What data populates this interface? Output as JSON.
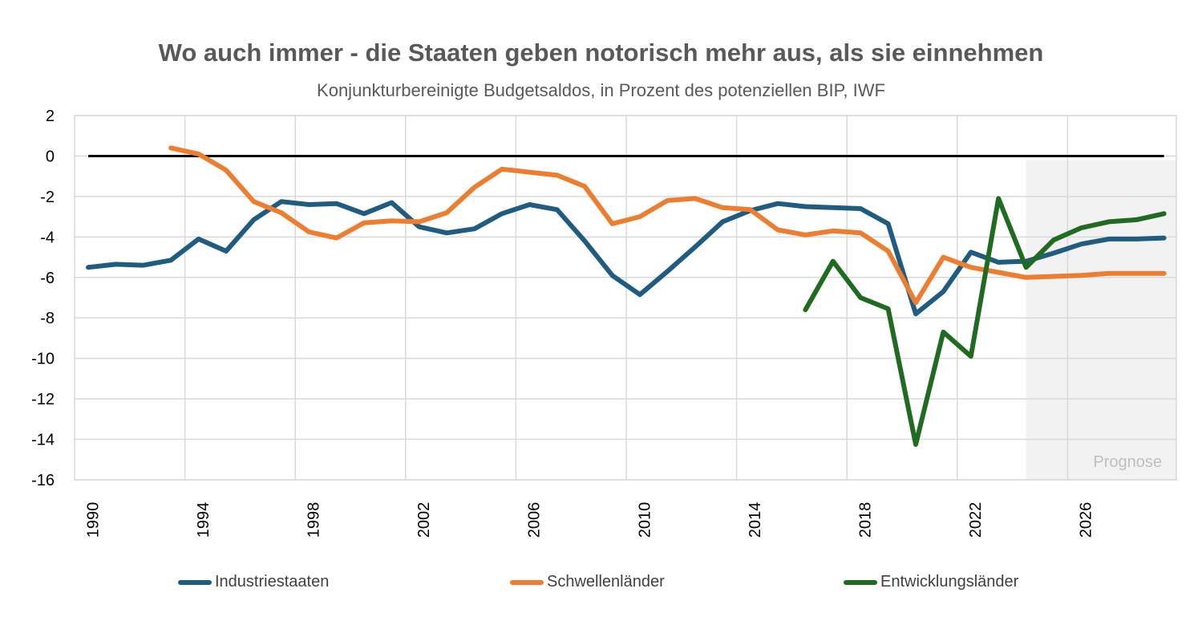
{
  "chart_data": {
    "type": "line",
    "title": "Wo auch immer - die Staaten geben notorisch mehr aus, als sie einnehmen",
    "subtitle": "Konjunkturbereinigte Budgetsaldos, in Prozent des potenziellen BIP, IWF",
    "xlabel": "",
    "ylabel": "",
    "ylim": [
      -16,
      2
    ],
    "xlim": [
      1990,
      2029
    ],
    "yticks": [
      2,
      0,
      -2,
      -4,
      -6,
      -8,
      -10,
      -12,
      -14,
      -16
    ],
    "ytick_labels": [
      "2",
      "0",
      "-2",
      "-4",
      "-6",
      "-8",
      "-10",
      "-12",
      "-14",
      "-16"
    ],
    "xtick_labels": [
      "1990",
      "1994",
      "1998",
      "2002",
      "2006",
      "2010",
      "2014",
      "2018",
      "2022",
      "2026"
    ],
    "grid": true,
    "zero_line": true,
    "forecast_region": {
      "from": 2024,
      "to": 2029,
      "label": "Prognose"
    },
    "legend_position": "bottom",
    "series": [
      {
        "name": "Industriestaaten",
        "color": "#1f5c80",
        "points": [
          [
            1990,
            -5.5
          ],
          [
            1991,
            -5.35
          ],
          [
            1992,
            -5.4
          ],
          [
            1993,
            -5.15
          ],
          [
            1994,
            -4.1
          ],
          [
            1995,
            -4.7
          ],
          [
            1996,
            -3.15
          ],
          [
            1997,
            -2.25
          ],
          [
            1998,
            -2.4
          ],
          [
            1999,
            -2.35
          ],
          [
            2000,
            -2.85
          ],
          [
            2001,
            -2.3
          ],
          [
            2002,
            -3.5
          ],
          [
            2003,
            -3.8
          ],
          [
            2004,
            -3.6
          ],
          [
            2005,
            -2.85
          ],
          [
            2006,
            -2.4
          ],
          [
            2007,
            -2.65
          ],
          [
            2008,
            -4.2
          ],
          [
            2009,
            -5.9
          ],
          [
            2010,
            -6.85
          ],
          [
            2011,
            -5.7
          ],
          [
            2012,
            -4.5
          ],
          [
            2013,
            -3.25
          ],
          [
            2014,
            -2.7
          ],
          [
            2015,
            -2.35
          ],
          [
            2016,
            -2.5
          ],
          [
            2017,
            -2.55
          ],
          [
            2018,
            -2.6
          ],
          [
            2019,
            -3.35
          ],
          [
            2020,
            -7.8
          ],
          [
            2021,
            -6.7
          ],
          [
            2022,
            -4.75
          ],
          [
            2023,
            -5.25
          ],
          [
            2024,
            -5.2
          ],
          [
            2025,
            -4.8
          ],
          [
            2026,
            -4.35
          ],
          [
            2027,
            -4.1
          ],
          [
            2028,
            -4.1
          ],
          [
            2029,
            -4.05
          ]
        ]
      },
      {
        "name": "Schwellenländer",
        "color": "#ed7d31",
        "points": [
          [
            1993,
            0.4
          ],
          [
            1994,
            0.1
          ],
          [
            1995,
            -0.7
          ],
          [
            1996,
            -2.25
          ],
          [
            1997,
            -2.8
          ],
          [
            1998,
            -3.75
          ],
          [
            1999,
            -4.05
          ],
          [
            2000,
            -3.3
          ],
          [
            2001,
            -3.2
          ],
          [
            2002,
            -3.25
          ],
          [
            2003,
            -2.8
          ],
          [
            2004,
            -1.55
          ],
          [
            2005,
            -0.65
          ],
          [
            2006,
            -0.8
          ],
          [
            2007,
            -0.95
          ],
          [
            2008,
            -1.5
          ],
          [
            2009,
            -3.35
          ],
          [
            2010,
            -3.0
          ],
          [
            2011,
            -2.2
          ],
          [
            2012,
            -2.1
          ],
          [
            2013,
            -2.55
          ],
          [
            2014,
            -2.65
          ],
          [
            2015,
            -3.65
          ],
          [
            2016,
            -3.9
          ],
          [
            2017,
            -3.7
          ],
          [
            2018,
            -3.8
          ],
          [
            2019,
            -4.7
          ],
          [
            2020,
            -7.25
          ],
          [
            2021,
            -5.0
          ],
          [
            2022,
            -5.5
          ],
          [
            2023,
            -5.75
          ],
          [
            2024,
            -6.0
          ],
          [
            2025,
            -5.95
          ],
          [
            2026,
            -5.9
          ],
          [
            2027,
            -5.8
          ],
          [
            2028,
            -5.8
          ],
          [
            2029,
            -5.8
          ]
        ]
      },
      {
        "name": "Entwicklungsländer",
        "color": "#1e6b21",
        "points": [
          [
            2016,
            -7.6
          ],
          [
            2017,
            -5.2
          ],
          [
            2018,
            -7.0
          ],
          [
            2019,
            -7.55
          ],
          [
            2020,
            -14.25
          ],
          [
            2021,
            -8.7
          ],
          [
            2022,
            -9.9
          ],
          [
            2023,
            -2.1
          ],
          [
            2024,
            -5.5
          ],
          [
            2025,
            -4.15
          ],
          [
            2026,
            -3.55
          ],
          [
            2027,
            -3.25
          ],
          [
            2028,
            -3.15
          ],
          [
            2029,
            -2.85
          ]
        ]
      }
    ]
  }
}
